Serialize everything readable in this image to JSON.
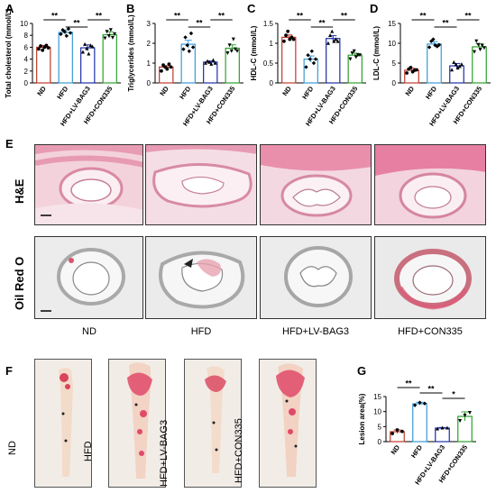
{
  "panel_letters": {
    "a": "A",
    "b": "B",
    "c": "C",
    "d": "D",
    "e": "E",
    "f": "F",
    "g": "G"
  },
  "colors": {
    "ND": "#c0392b",
    "HFD": "#3a9ad9",
    "HFD+LV-BAG3": "#1d2ea8",
    "HFD+CON335": "#2ca02c"
  },
  "chart_data": [
    {
      "type": "bar",
      "ylabel": "Total cholesterol (mmol/L)",
      "ylim": [
        0,
        10
      ],
      "yticks": [
        0,
        2,
        4,
        6,
        8,
        10
      ],
      "categories": [
        "ND",
        "HFD",
        "HFD+LV-BAG3",
        "HFD+CON335"
      ],
      "values": [
        6.0,
        8.5,
        5.9,
        8.1
      ],
      "errors": [
        0.3,
        0.4,
        0.5,
        0.5
      ],
      "points": [
        [
          5.7,
          6.2,
          5.5,
          6.0,
          6.3,
          5.9
        ],
        [
          8.2,
          8.9,
          8.6,
          7.9,
          9.1,
          8.4
        ],
        [
          5.2,
          6.5,
          5.8,
          4.9,
          6.3,
          6.1
        ],
        [
          7.5,
          8.6,
          7.9,
          8.9,
          7.6,
          8.2
        ]
      ],
      "significance": [
        {
          "from": 0,
          "to": 1,
          "label": "**"
        },
        {
          "from": 1,
          "to": 2,
          "label": "**"
        },
        {
          "from": 2,
          "to": 3,
          "label": "**"
        }
      ]
    },
    {
      "type": "bar",
      "ylabel": "Triglycerides (mmol/L)",
      "ylim": [
        0,
        3
      ],
      "yticks": [
        0,
        1,
        2,
        3
      ],
      "categories": [
        "ND",
        "HFD",
        "HFD+LV-BAG3",
        "HFD+CON335"
      ],
      "values": [
        0.8,
        1.95,
        1.05,
        1.75
      ],
      "errors": [
        0.07,
        0.2,
        0.05,
        0.17
      ],
      "points": [
        [
          0.6,
          0.9,
          0.8,
          0.7,
          0.95,
          0.8
        ],
        [
          1.7,
          2.3,
          1.9,
          1.6,
          2.5,
          1.8
        ],
        [
          1.0,
          1.1,
          1.05,
          0.95,
          1.15,
          1.0
        ],
        [
          1.5,
          1.9,
          1.6,
          2.2,
          1.7,
          1.6
        ]
      ],
      "significance": [
        {
          "from": 0,
          "to": 1,
          "label": "**"
        },
        {
          "from": 1,
          "to": 2,
          "label": "**"
        },
        {
          "from": 2,
          "to": 3,
          "label": "**"
        }
      ]
    },
    {
      "type": "bar",
      "ylabel": "HDL-C (mmol/L)",
      "ylim": [
        0,
        1.5
      ],
      "yticks": [
        0,
        0.5,
        1.0,
        1.5
      ],
      "categories": [
        "ND",
        "HFD",
        "HFD+LV-BAG3",
        "HFD+CON335"
      ],
      "values": [
        1.15,
        0.6,
        1.12,
        0.7
      ],
      "errors": [
        0.06,
        0.08,
        0.07,
        0.05
      ],
      "points": [
        [
          1.05,
          1.2,
          1.3,
          1.1,
          1.15,
          1.1
        ],
        [
          0.4,
          0.7,
          0.6,
          0.8,
          0.5,
          0.6
        ],
        [
          1.0,
          1.2,
          1.3,
          1.05,
          1.1,
          1.05
        ],
        [
          0.6,
          0.75,
          0.8,
          0.65,
          0.7,
          0.7
        ]
      ],
      "significance": [
        {
          "from": 0,
          "to": 1,
          "label": "**"
        },
        {
          "from": 1,
          "to": 2,
          "label": "**"
        },
        {
          "from": 2,
          "to": 3,
          "label": "**"
        }
      ]
    },
    {
      "type": "bar",
      "ylabel": "LDL-C (mmol/L)",
      "ylim": [
        0,
        15
      ],
      "yticks": [
        0,
        5,
        10,
        15
      ],
      "categories": [
        "ND",
        "HFD",
        "HFD+LV-BAG3",
        "HFD+CON335"
      ],
      "values": [
        3.2,
        9.8,
        4.3,
        9.1
      ],
      "errors": [
        0.5,
        0.6,
        0.6,
        0.8
      ],
      "points": [
        [
          2.5,
          3.5,
          3.9,
          2.8,
          3.2,
          3.3
        ],
        [
          9.0,
          10.5,
          11.0,
          9.5,
          9.2,
          9.6
        ],
        [
          3.3,
          5.2,
          4.6,
          3.8,
          4.2,
          4.7
        ],
        [
          7.8,
          10.5,
          9.6,
          8.4,
          9.4,
          8.8
        ]
      ],
      "significance": [
        {
          "from": 0,
          "to": 1,
          "label": "**"
        },
        {
          "from": 1,
          "to": 2,
          "label": "**"
        },
        {
          "from": 2,
          "to": 3,
          "label": "**"
        }
      ]
    },
    {
      "type": "bar",
      "ylabel": "Lesion area(%)",
      "ylim": [
        0,
        15
      ],
      "yticks": [
        0,
        5,
        10,
        15
      ],
      "categories": [
        "ND",
        "HFD",
        "HFD+LV-BAG3",
        "HFD+CON335"
      ],
      "values": [
        3.3,
        12.6,
        4.5,
        8.4
      ],
      "errors": [
        0.6,
        0.5,
        0.2,
        1.5
      ],
      "points": [
        [
          2.7,
          3.9,
          3.4
        ],
        [
          12.1,
          13.0,
          12.7
        ],
        [
          4.3,
          4.6,
          4.6
        ],
        [
          6.9,
          8.7,
          9.6
        ]
      ],
      "significance": [
        {
          "from": 0,
          "to": 1,
          "label": "**"
        },
        {
          "from": 1,
          "to": 2,
          "label": "**"
        },
        {
          "from": 2,
          "to": 3,
          "label": "*"
        }
      ]
    }
  ],
  "histology": {
    "row_labels": [
      "H&E",
      "Oil Red O"
    ],
    "col_labels": [
      "ND",
      "HFD",
      "HFD+LV-BAG3",
      "HFD+CON335"
    ]
  },
  "gross": {
    "labels": [
      "ND",
      "HFD",
      "HFD+LV-BAG3",
      "HFD+CON335"
    ]
  }
}
